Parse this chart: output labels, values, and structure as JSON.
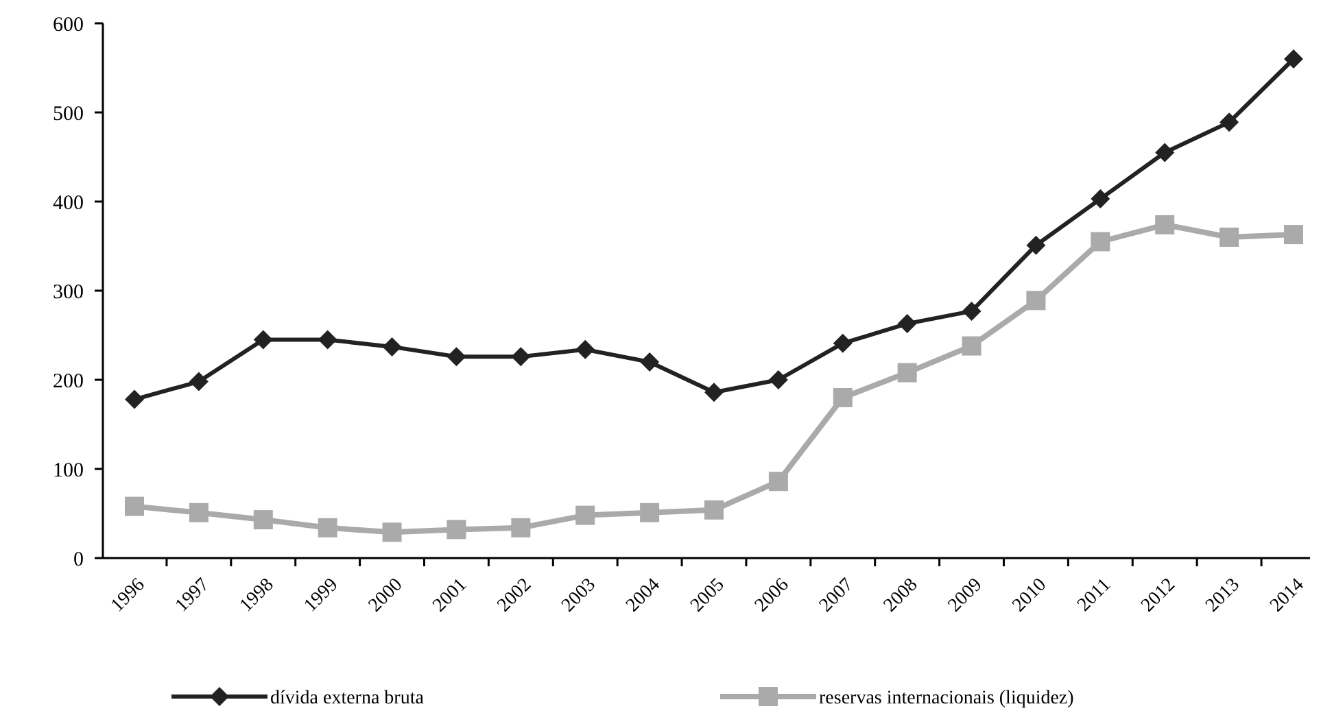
{
  "chart_data": {
    "type": "line",
    "categories": [
      "1996",
      "1997",
      "1998",
      "1999",
      "2000",
      "2001",
      "2002",
      "2003",
      "2004",
      "2005",
      "2006",
      "2007",
      "2008",
      "2009",
      "2010",
      "2011",
      "2012",
      "2013",
      "2014"
    ],
    "series": [
      {
        "name": "dívida externa bruta",
        "color": "#222222",
        "marker": "diamond",
        "values": [
          178,
          198,
          245,
          245,
          237,
          226,
          226,
          234,
          220,
          186,
          200,
          241,
          263,
          277,
          351,
          403,
          455,
          489,
          560
        ]
      },
      {
        "name": "reservas internacionais (liquidez)",
        "color": "#aaaaaa",
        "marker": "square",
        "values": [
          58,
          51,
          43,
          34,
          29,
          32,
          34,
          48,
          51,
          54,
          86,
          180,
          208,
          238,
          289,
          355,
          374,
          360,
          363
        ]
      }
    ],
    "ylim": [
      0,
      600
    ],
    "yticks": [
      0,
      100,
      200,
      300,
      400,
      500,
      600
    ],
    "grid": false,
    "legend": "bottom"
  }
}
